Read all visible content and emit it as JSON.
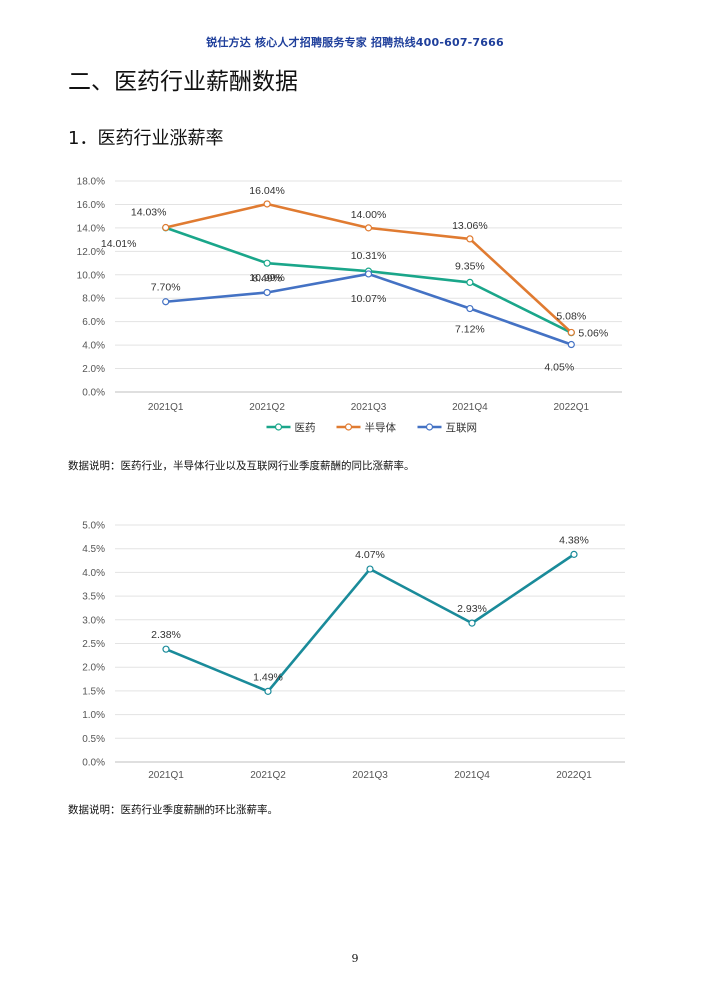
{
  "header": {
    "banner": "锐仕方达  核心人才招聘服务专家  招聘热线400-607-7666"
  },
  "section_title": "二、医药行业薪酬数据",
  "subsection_title": "1．医药行业涨薪率",
  "chart_data": [
    {
      "type": "line",
      "categories": [
        "2021Q1",
        "2021Q2",
        "2021Q3",
        "2021Q4",
        "2022Q1"
      ],
      "ylim": [
        0,
        18
      ],
      "yticks": [
        "0.0%",
        "2.0%",
        "4.0%",
        "6.0%",
        "8.0%",
        "10.0%",
        "12.0%",
        "14.0%",
        "16.0%",
        "18.0%"
      ],
      "grid": true,
      "legend_position": "bottom",
      "series": [
        {
          "name": "医药",
          "color": "#1aa68a",
          "values": [
            14.01,
            10.99,
            10.31,
            9.35,
            5.06
          ],
          "labels": [
            "14.01%",
            "10.99%",
            "10.31%",
            "9.35%",
            "5.06%"
          ]
        },
        {
          "name": "半导体",
          "color": "#e07b31",
          "values": [
            14.03,
            16.04,
            14.0,
            13.06,
            5.08
          ],
          "labels": [
            "14.03%",
            "16.04%",
            "14.00%",
            "13.06%",
            "5.08%"
          ]
        },
        {
          "name": "互联网",
          "color": "#4472c4",
          "values": [
            7.7,
            8.49,
            10.07,
            7.12,
            4.05
          ],
          "labels": [
            "7.70%",
            "8.49%",
            "10.07%",
            "7.12%",
            "4.05%"
          ]
        }
      ]
    },
    {
      "type": "line",
      "categories": [
        "2021Q1",
        "2021Q2",
        "2021Q3",
        "2021Q4",
        "2022Q1"
      ],
      "ylim": [
        0,
        5
      ],
      "yticks": [
        "0.0%",
        "0.5%",
        "1.0%",
        "1.5%",
        "2.0%",
        "2.5%",
        "3.0%",
        "3.5%",
        "4.0%",
        "4.5%",
        "5.0%"
      ],
      "grid": true,
      "series": [
        {
          "color": "#1a8b9a",
          "values": [
            2.38,
            1.49,
            4.07,
            2.93,
            4.38
          ],
          "labels": [
            "2.38%",
            "1.49%",
            "4.07%",
            "2.93%",
            "4.38%"
          ]
        }
      ]
    }
  ],
  "notes": {
    "chart1": "数据说明：医药行业，半导体行业以及互联网行业季度薪酬的同比涨薪率。",
    "chart2": "数据说明：医药行业季度薪酬的环比涨薪率。"
  },
  "page_number": "9"
}
